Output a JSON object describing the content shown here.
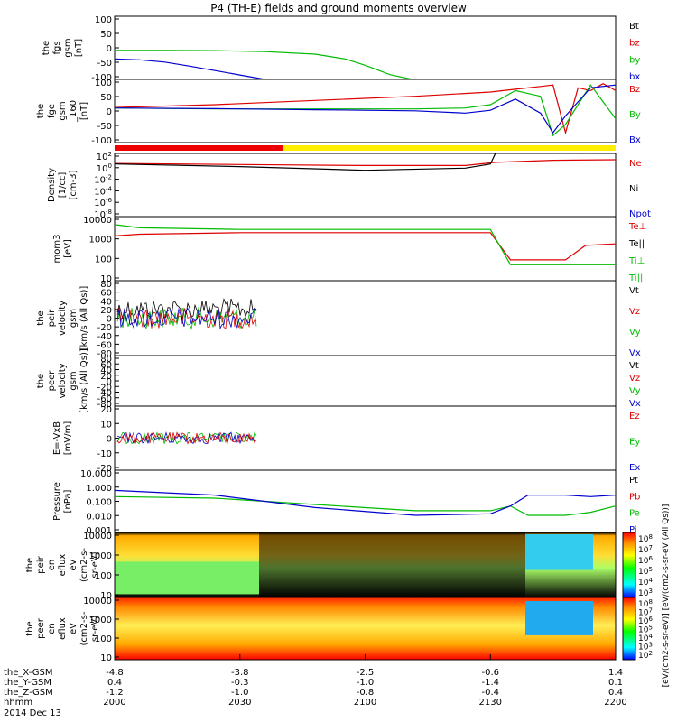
{
  "title": "P4 (TH-E) fields and ground moments overview",
  "chart_data": {
    "type": "line",
    "title": "P4 (TH-E) fields and ground moments overview",
    "panels": [
      {
        "id": "fgs",
        "ylabel": [
          "the",
          "fgs",
          "gsm",
          "[nT]"
        ],
        "ylim": [
          -100,
          100
        ],
        "yticks": [
          "100",
          "50",
          "0",
          "-50",
          "-100"
        ],
        "legend": [
          {
            "label": "Bt",
            "color": "#000000"
          },
          {
            "label": "bz",
            "color": "#dd0000"
          },
          {
            "label": "by",
            "color": "#00bb00"
          },
          {
            "label": "bx",
            "color": "#0000cc"
          }
        ],
        "series": [
          {
            "name": "by",
            "x": [
              0,
              20,
              40,
              60,
              80,
              92,
              100,
              110,
              119
            ],
            "y": [
              -8,
              -8,
              -9,
              -12,
              -20,
              -35,
              -55,
              -85,
              -100
            ]
          },
          {
            "name": "bx",
            "x": [
              0,
              10,
              20,
              30,
              40,
              50,
              60
            ],
            "y": [
              -35,
              -38,
              -45,
              -58,
              -72,
              -86,
              -100
            ]
          }
        ]
      },
      {
        "id": "fge",
        "ylabel": [
          "the",
          "fge",
          "gsm",
          "_160",
          "[nT]"
        ],
        "ylim": [
          -125,
          100
        ],
        "yticks": [
          "100",
          "50",
          "0",
          "-50",
          "-100"
        ],
        "legend": [
          {
            "label": "Bz",
            "color": "#dd0000"
          },
          {
            "label": "By",
            "color": "#00bb00"
          },
          {
            "label": "Bx",
            "color": "#0000cc"
          }
        ],
        "series": [
          {
            "name": "Bz",
            "x": [
              0,
              40,
              80,
              120,
              150,
              160,
              170,
              175,
              180,
              185,
              190,
              195,
              200
            ],
            "y": [
              0,
              10,
              25,
              40,
              55,
              65,
              75,
              80,
              -90,
              70,
              60,
              85,
              60
            ]
          },
          {
            "name": "By",
            "x": [
              0,
              40,
              80,
              120,
              140,
              150,
              160,
              170,
              175,
              180,
              190,
              200
            ],
            "y": [
              -2,
              -5,
              -5,
              -5,
              -2,
              10,
              60,
              40,
              -100,
              -60,
              80,
              -40
            ]
          },
          {
            "name": "Bx",
            "x": [
              0,
              40,
              80,
              120,
              140,
              150,
              160,
              170,
              175,
              180,
              190,
              200
            ],
            "y": [
              -2,
              -4,
              -8,
              -12,
              -20,
              -10,
              30,
              -20,
              -90,
              -30,
              70,
              80
            ]
          }
        ]
      },
      {
        "id": "density",
        "ylabel": [
          "Density",
          "[1/cc]",
          "[cm-3]"
        ],
        "ylim": [
          -9,
          3
        ],
        "ylog": true,
        "yticks": [
          "10^2",
          "10^0",
          "10^-2",
          "10^-4",
          "10^-6",
          "10^-8"
        ],
        "legend": [
          {
            "label": "Ne",
            "color": "#dd0000"
          },
          {
            "label": "Ni",
            "color": "#000000"
          },
          {
            "label": "Npot",
            "color": "#0000cc"
          }
        ],
        "series": [
          {
            "name": "Ne",
            "x": [
              0,
              50,
              100,
              140,
              152,
              175,
              200
            ],
            "y": [
              1.1,
              0.9,
              0.7,
              0.7,
              1.3,
              1.7,
              1.8
            ]
          },
          {
            "name": "Ni",
            "x": [
              0,
              50,
              100,
              140,
              150,
              152
            ],
            "y": [
              1.0,
              0.5,
              -0.2,
              0.2,
              1.0,
              3.0
            ]
          }
        ]
      },
      {
        "id": "temperature",
        "ylabel": [
          "mom3",
          "[eV]"
        ],
        "ylim": [
          0,
          4
        ],
        "ylog": true,
        "yticks": [
          "10000",
          "1000",
          "100",
          "10"
        ],
        "legend": [
          {
            "label": "Te⊥",
            "color": "#dd0000"
          },
          {
            "label": "Te||",
            "color": "#000000"
          },
          {
            "label": "Ti⊥",
            "color": "#00bb00"
          },
          {
            "label": "Ti||",
            "color": "#00bb00"
          }
        ],
        "series": [
          {
            "name": "Te⊥",
            "x": [
              0,
              10,
              50,
              100,
              150,
              158,
              180,
              188,
              200
            ],
            "y": [
              2.8,
              2.9,
              3.0,
              3.0,
              3.0,
              1.3,
              1.3,
              2.2,
              2.3
            ]
          },
          {
            "name": "Ti⊥",
            "x": [
              0,
              10,
              50,
              100,
              150,
              158,
              180,
              188,
              200
            ],
            "y": [
              3.5,
              3.3,
              3.2,
              3.2,
              3.2,
              1.0,
              1.0,
              1.0,
              1.0
            ]
          }
        ]
      },
      {
        "id": "peir_velocity",
        "ylabel": [
          "the",
          "peir",
          "velocity",
          "gsm",
          "[km/s (All Qs)]"
        ],
        "ylim": [
          -80,
          80
        ],
        "yticks": [
          "80",
          "60",
          "40",
          "20",
          "0",
          "-20",
          "-40",
          "-60",
          "-80"
        ],
        "legend": [
          {
            "label": "Vt",
            "color": "#000000"
          },
          {
            "label": "Vz",
            "color": "#dd0000"
          },
          {
            "label": "Vy",
            "color": "#00bb00"
          },
          {
            "label": "Vx",
            "color": "#0000cc"
          }
        ]
      },
      {
        "id": "peer_velocity",
        "ylabel": [
          "the",
          "peer",
          "velocity",
          "gsm",
          "[km/s (All Qs)]"
        ],
        "ylim": [
          -80,
          80
        ],
        "yticks": [
          "80",
          "60",
          "40",
          "20",
          "0",
          "-20",
          "-40",
          "-60",
          "-80"
        ],
        "legend": [
          {
            "label": "Vt",
            "color": "#000000"
          },
          {
            "label": "Vz",
            "color": "#dd0000"
          },
          {
            "label": "Vy",
            "color": "#00bb00"
          },
          {
            "label": "Vx",
            "color": "#0000cc"
          }
        ]
      },
      {
        "id": "efield",
        "ylabel": [
          "E=-VxB",
          "[mV/m]"
        ],
        "ylim": [
          -20,
          20
        ],
        "yticks": [
          "20",
          "10",
          "0",
          "-10",
          "-20"
        ],
        "legend": [
          {
            "label": "Ez",
            "color": "#dd0000"
          },
          {
            "label": "Ey",
            "color": "#00bb00"
          },
          {
            "label": "Ex",
            "color": "#0000cc"
          }
        ]
      },
      {
        "id": "pressure",
        "ylabel": [
          "Pressure",
          "[nPa]"
        ],
        "ylim": [
          -3,
          1
        ],
        "ylog": true,
        "yticks": [
          "10.000",
          "1.000",
          "0.100",
          "0.010",
          "0.001"
        ],
        "legend": [
          {
            "label": "Pt",
            "color": "#000000"
          },
          {
            "label": "Pb",
            "color": "#dd0000"
          },
          {
            "label": "Pe",
            "color": "#00bb00"
          },
          {
            "label": "Pi",
            "color": "#0000cc"
          }
        ],
        "series": [
          {
            "name": "Pe",
            "x": [
              0,
              40,
              80,
              120,
              150,
              158,
              165,
              180,
              190,
              200
            ],
            "y": [
              -0.7,
              -0.8,
              -1.2,
              -1.6,
              -1.6,
              -1.3,
              -1.9,
              -1.9,
              -1.7,
              -1.3
            ]
          },
          {
            "name": "Pi",
            "x": [
              0,
              40,
              80,
              120,
              150,
              158,
              165,
              180,
              190,
              200
            ],
            "y": [
              -0.3,
              -0.6,
              -1.4,
              -1.9,
              -1.8,
              -1.3,
              -0.6,
              -0.6,
              -0.7,
              -0.6
            ]
          }
        ]
      },
      {
        "id": "peir_en_eflux",
        "ylabel": [
          "the",
          "peir",
          "en",
          "eflux",
          "eV",
          "(cm2-s-",
          "sr-eV)"
        ],
        "yticks": [
          "10000",
          "1000",
          "100",
          "10"
        ],
        "colorbar_ticks": [
          "10^8",
          "10^7",
          "10^6",
          "10^5",
          "10^4",
          "10^3"
        ]
      },
      {
        "id": "peer_en_eflux",
        "ylabel": [
          "the",
          "peer",
          "en",
          "eflux",
          "eV",
          "(cm2-s-",
          "sr-eV)"
        ],
        "yticks": [
          "10000",
          "1000",
          "100",
          "10"
        ],
        "colorbar_ticks": [
          "10^8",
          "10^7",
          "10^6",
          "10^5",
          "10^4",
          "10^3",
          "10^2"
        ]
      }
    ],
    "colorbar_label": "[eV/(cm2-s-sr-eV)] [eV/(cm2-s-sr-eV (All Qs))]",
    "x_axis": {
      "rows": [
        {
          "label": "the_X-GSM",
          "values": [
            "-4.8",
            "-3.8",
            "-2.5",
            "-0.6",
            "1.4"
          ]
        },
        {
          "label": "the_Y-GSM",
          "values": [
            "0.4",
            "-0.3",
            "-1.0",
            "-1.4",
            "0.1"
          ]
        },
        {
          "label": "the_Z-GSM",
          "values": [
            "-1.2",
            "-1.0",
            "-0.8",
            "-0.4",
            "0.4"
          ]
        },
        {
          "label": "hhmm",
          "values": [
            "2000",
            "2030",
            "2100",
            "2130",
            "2200"
          ]
        }
      ],
      "date": "2014 Dec 13"
    }
  }
}
